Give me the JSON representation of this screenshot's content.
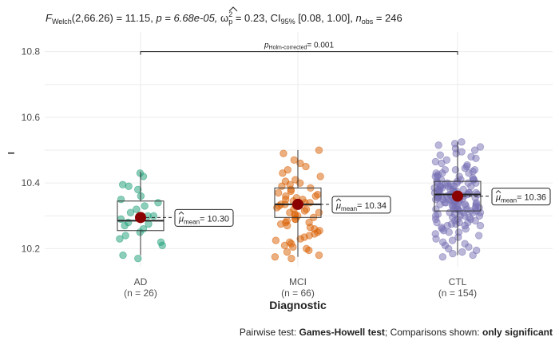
{
  "chart_data": {
    "type": "box-violin-scatter",
    "title": {
      "f_prefix": "F",
      "f_sub": "Welch",
      "f_args": "(2,66.26) = 11.15, ",
      "p_part": "p = 6.68e-05, ",
      "omega_sym": "ω",
      "omega_sup": "2",
      "omega_sub": "p",
      "omega_val": " = 0.23, ",
      "ci_prefix": "CI",
      "ci_sub": "95%",
      "ci_val": " [0.08, 1.00], ",
      "n_prefix": "n",
      "n_sub": "obs",
      "n_val": " = 246"
    },
    "ylabel": "–",
    "xlabel": "Diagnostic",
    "caption_prefix": "Pairwise test: ",
    "caption_test": "Games-Howell test",
    "caption_mid": "; Comparisons shown: ",
    "caption_shown": "only significant",
    "ylim": [
      10.145,
      10.86
    ],
    "yticks": [
      10.2,
      10.4,
      10.6,
      10.8
    ],
    "ytick_labels": [
      "10.2",
      "10.4",
      "10.6",
      "10.8"
    ],
    "groups": [
      {
        "name": "AD",
        "n_label": "(n = 26)",
        "n": 26,
        "color": "#1b9e77",
        "mean": 10.295,
        "mean_label": "10.30",
        "q1": 10.255,
        "median": 10.285,
        "q3": 10.345,
        "whisker_low": 10.18,
        "whisker_high": 10.435,
        "points": [
          10.43,
          10.42,
          10.395,
          10.39,
          10.38,
          10.36,
          10.35,
          10.34,
          10.33,
          10.32,
          10.31,
          10.3,
          10.3,
          10.29,
          10.29,
          10.28,
          10.275,
          10.27,
          10.26,
          10.25,
          10.24,
          10.23,
          10.22,
          10.21,
          10.18,
          10.17
        ]
      },
      {
        "name": "MCI",
        "n_label": "(n = 66)",
        "n": 66,
        "color": "#d95f02",
        "mean": 10.335,
        "mean_label": "10.34",
        "q1": 10.295,
        "median": 10.335,
        "q3": 10.385,
        "whisker_low": 10.175,
        "whisker_high": 10.5,
        "points": [
          10.5,
          10.49,
          10.47,
          10.46,
          10.45,
          10.44,
          10.43,
          10.42,
          10.41,
          10.405,
          10.4,
          10.395,
          10.39,
          10.385,
          10.38,
          10.375,
          10.37,
          10.365,
          10.36,
          10.36,
          10.355,
          10.35,
          10.35,
          10.345,
          10.34,
          10.34,
          10.335,
          10.335,
          10.33,
          10.33,
          10.325,
          10.32,
          10.32,
          10.315,
          10.31,
          10.31,
          10.305,
          10.3,
          10.3,
          10.295,
          10.29,
          10.29,
          10.285,
          10.28,
          10.28,
          10.275,
          10.27,
          10.265,
          10.26,
          10.255,
          10.25,
          10.245,
          10.24,
          10.235,
          10.23,
          10.225,
          10.22,
          10.215,
          10.21,
          10.205,
          10.2,
          10.195,
          10.19,
          10.18,
          10.175,
          10.17
        ]
      },
      {
        "name": "CTL",
        "n_label": "(n = 154)",
        "n": 154,
        "color": "#7570b3",
        "mean": 10.36,
        "mean_label": "10.36",
        "q1": 10.315,
        "median": 10.365,
        "q3": 10.405,
        "whisker_low": 10.18,
        "whisker_high": 10.525,
        "points": [
          10.525,
          10.52,
          10.515,
          10.51,
          10.505,
          10.5,
          10.495,
          10.49,
          10.485,
          10.48,
          10.475,
          10.47,
          10.465,
          10.46,
          10.455,
          10.45,
          10.445,
          10.44,
          10.44,
          10.435,
          10.43,
          10.43,
          10.425,
          10.42,
          10.42,
          10.415,
          10.41,
          10.41,
          10.405,
          10.405,
          10.4,
          10.4,
          10.4,
          10.395,
          10.395,
          10.39,
          10.39,
          10.39,
          10.385,
          10.385,
          10.38,
          10.38,
          10.38,
          10.375,
          10.375,
          10.375,
          10.37,
          10.37,
          10.37,
          10.37,
          10.365,
          10.365,
          10.365,
          10.36,
          10.36,
          10.36,
          10.36,
          10.355,
          10.355,
          10.355,
          10.35,
          10.35,
          10.35,
          10.35,
          10.345,
          10.345,
          10.345,
          10.34,
          10.34,
          10.34,
          10.335,
          10.335,
          10.335,
          10.33,
          10.33,
          10.33,
          10.325,
          10.325,
          10.325,
          10.32,
          10.32,
          10.32,
          10.315,
          10.315,
          10.315,
          10.31,
          10.31,
          10.31,
          10.305,
          10.305,
          10.3,
          10.3,
          10.3,
          10.295,
          10.295,
          10.29,
          10.29,
          10.285,
          10.285,
          10.28,
          10.28,
          10.275,
          10.275,
          10.27,
          10.27,
          10.265,
          10.26,
          10.26,
          10.255,
          10.25,
          10.25,
          10.245,
          10.24,
          10.235,
          10.23,
          10.225,
          10.22,
          10.215,
          10.21,
          10.205,
          10.2,
          10.195,
          10.19,
          10.185,
          10.18,
          10.175,
          10.38,
          10.39,
          10.4,
          10.41,
          10.37,
          10.36,
          10.35,
          10.34,
          10.33,
          10.32,
          10.31,
          10.3,
          10.42,
          10.43,
          10.44,
          10.36,
          10.37,
          10.38,
          10.35,
          10.34,
          10.33,
          10.32,
          10.39,
          10.4,
          10.41,
          10.29,
          10.28,
          10.27
        ]
      }
    ],
    "mean_label_prefix": "μ",
    "mean_label_sub": "mean",
    "mean_label_eq": "= ",
    "pairwise": {
      "from": 0,
      "to": 2,
      "y": 10.8,
      "label_prefix": "p",
      "label_sub": "Holm-corrected",
      "label_val": "= 0.001"
    },
    "mean_point_color": "#8b0000",
    "grid": true
  }
}
